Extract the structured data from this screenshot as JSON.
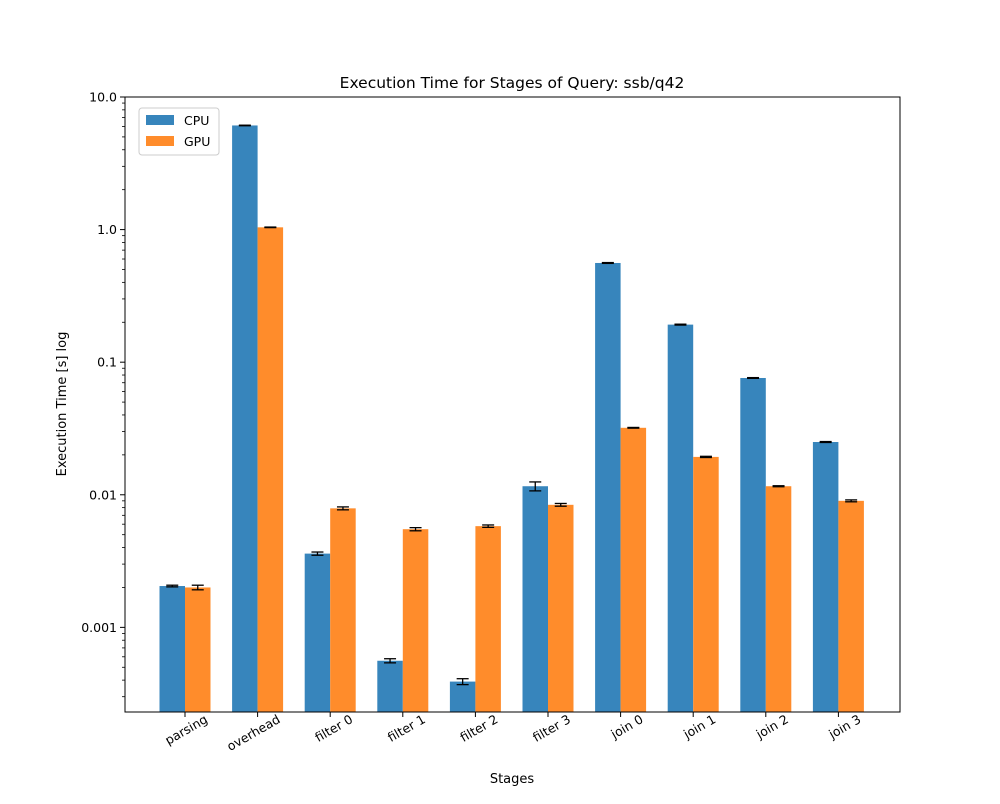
{
  "chart_data": {
    "type": "bar",
    "title": "Execution Time for Stages of Query: ssb/q42",
    "xlabel": "Stages",
    "ylabel": "Execution Time [s] log",
    "yscale": "log",
    "ylim": [
      0.00023,
      10.0
    ],
    "yticks": [
      0.001,
      0.01,
      0.1,
      1.0,
      10.0
    ],
    "ytick_labels": [
      "0.001",
      "0.01",
      "0.1",
      "1.0",
      "10.0"
    ],
    "categories": [
      "parsing",
      "overhead",
      "filter 0",
      "filter 1",
      "filter 2",
      "filter 3",
      "join 0",
      "join 1",
      "join 2",
      "join 3"
    ],
    "series": [
      {
        "name": "CPU",
        "color": "#3785bc",
        "values": [
          0.00205,
          6.1,
          0.0036,
          0.00056,
          0.00039,
          0.0116,
          0.56,
          0.192,
          0.076,
          0.025
        ],
        "errors": [
          3e-05,
          0.03,
          0.0001,
          2e-05,
          2e-05,
          0.0009,
          0.004,
          0.0015,
          0.0005,
          0.0002
        ]
      },
      {
        "name": "GPU",
        "color": "#ff8c2b",
        "values": [
          0.002,
          1.04,
          0.0079,
          0.0055,
          0.0058,
          0.0084,
          0.032,
          0.0193,
          0.0116,
          0.009
        ],
        "errors": [
          8e-05,
          0.005,
          0.0002,
          0.00015,
          0.00012,
          0.0002,
          0.0002,
          0.0002,
          0.0001,
          0.00015
        ]
      }
    ],
    "legend_position": "top-left",
    "grid": false
  }
}
